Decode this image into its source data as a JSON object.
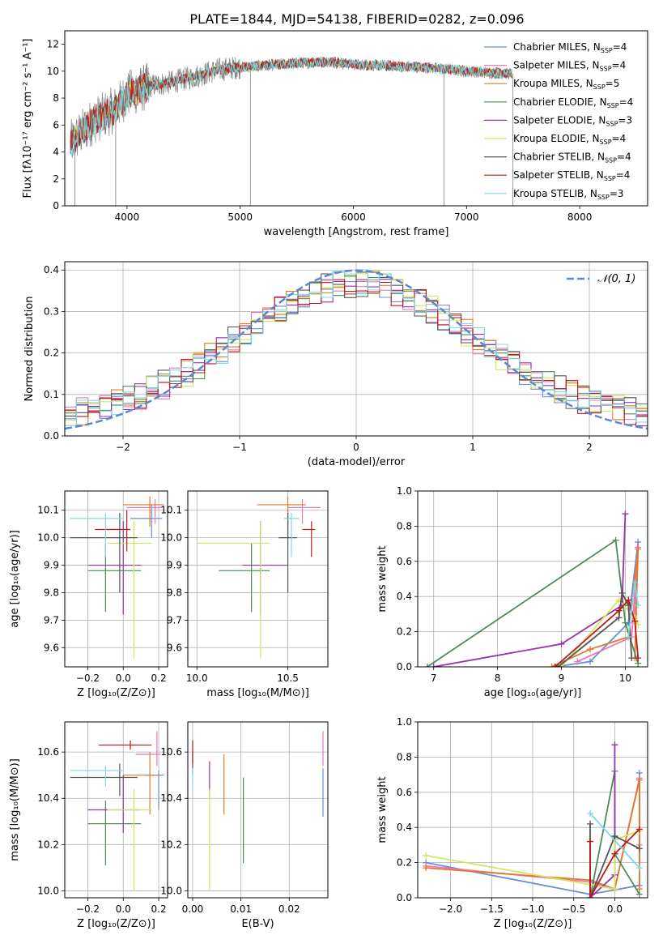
{
  "figure_title": "PLATE=1844, MJD=54138, FIBERID=0282, z=0.096",
  "colors": {
    "chabrier_miles": "#6a8ed8",
    "salpeter_miles": "#e87ab8",
    "kroupa_miles": "#e07a2a",
    "chabrier_elodie": "#4c8a5a",
    "salpeter_elodie": "#9a2fb0",
    "kroupa_elodie": "#d0e860",
    "chabrier_stelib": "#555555",
    "salpeter_stelib": "#c01818",
    "kroupa_stelib": "#80d8e0",
    "data": "#808080",
    "gaussian": "#5b87d6"
  },
  "chart_data": [
    {
      "id": "spectrum",
      "type": "line",
      "xlabel": "wavelength [Angstrom, rest frame]",
      "ylabel": "Flux [fλ10⁻¹⁷ erg cm⁻² s⁻¹ A⁻¹]",
      "xlim": [
        3450,
        8600
      ],
      "ylim": [
        0,
        13
      ],
      "xticks": [
        "4000",
        "5000",
        "6000",
        "7000",
        "8000"
      ],
      "yticks": [
        "0",
        "2",
        "4",
        "6",
        "8",
        "10",
        "12"
      ],
      "grid": false,
      "legend_position": "right",
      "legend": [
        {
          "name": "Chabrier MILES, N_SSP=4",
          "color_key": "chabrier_miles"
        },
        {
          "name": "Salpeter MILES, N_SSP=4",
          "color_key": "salpeter_miles"
        },
        {
          "name": "Kroupa MILES, N_SSP=5",
          "color_key": "kroupa_miles"
        },
        {
          "name": "Chabrier ELODIE, N_SSP=4",
          "color_key": "chabrier_elodie"
        },
        {
          "name": "Salpeter ELODIE, N_SSP=3",
          "color_key": "salpeter_elodie"
        },
        {
          "name": "Kroupa ELODIE, N_SSP=4",
          "color_key": "kroupa_elodie"
        },
        {
          "name": "Chabrier STELIB, N_SSP=4",
          "color_key": "chabrier_stelib"
        },
        {
          "name": "Salpeter STELIB, N_SSP=4",
          "color_key": "salpeter_stelib"
        },
        {
          "name": "Kroupa STELIB, N_SSP=3",
          "color_key": "kroupa_stelib"
        }
      ],
      "continuum": {
        "wavelength": [
          3500,
          3700,
          3900,
          4000,
          4200,
          4400,
          4600,
          4800,
          5000,
          5200,
          5500,
          5800,
          6000,
          6300,
          6600,
          7000,
          7400
        ],
        "flux": [
          4.6,
          6.3,
          7.2,
          8.3,
          8.9,
          9.2,
          9.6,
          10.1,
          10.3,
          10.4,
          10.6,
          10.7,
          10.5,
          10.4,
          10.3,
          10.0,
          9.8
        ]
      },
      "spikes": [
        {
          "wavelength": 3540,
          "flux": 0
        },
        {
          "wavelength": 3900,
          "flux": 0
        },
        {
          "wavelength": 5090,
          "flux": 0
        },
        {
          "wavelength": 6800,
          "flux": 0
        },
        {
          "wavelength": 7410,
          "flux": 0
        }
      ]
    },
    {
      "id": "residuals",
      "type": "histogram",
      "xlabel": "(data-model)/error",
      "ylabel": "Normed distribution",
      "xlim": [
        -2.5,
        2.5
      ],
      "ylim": [
        0,
        0.42
      ],
      "xticks": [
        "−2",
        "−1",
        "0",
        "1",
        "2"
      ],
      "yticks": [
        "0.0",
        "0.1",
        "0.2",
        "0.3",
        "0.4"
      ],
      "grid": true,
      "legend_position": "top-right",
      "legend": [
        {
          "name": "𝒩(0, 1)",
          "color_key": "gaussian"
        }
      ],
      "bin_width": 0.1,
      "gaussian": {
        "mean": 0,
        "sigma": 1
      }
    },
    {
      "id": "age_vs_Z",
      "type": "errorbar",
      "xlabel": "Z [log₁₀(Z/Z⊙)]",
      "ylabel": "age  [log₁₀(age/yr)]",
      "xlim": [
        -0.33,
        0.25
      ],
      "ylim": [
        9.53,
        10.17
      ],
      "xticks": [
        "−0.2",
        "0.0",
        "0.2"
      ],
      "yticks": [
        "9.6",
        "9.7",
        "9.8",
        "9.9",
        "10.0",
        "10.1"
      ],
      "grid": true,
      "points": [
        {
          "color_key": "chabrier_miles",
          "x": 0.16,
          "xerr": [
            0.12,
            0.06
          ],
          "y": 10.07,
          "yerr": [
            0.07,
            0.05
          ]
        },
        {
          "color_key": "salpeter_miles",
          "x": 0.18,
          "xerr": [
            0.16,
            0.04
          ],
          "y": 10.11,
          "yerr": [
            0.06,
            0.03
          ]
        },
        {
          "color_key": "kroupa_miles",
          "x": 0.15,
          "xerr": [
            0.15,
            0.08
          ],
          "y": 10.12,
          "yerr": [
            0.08,
            0.03
          ]
        },
        {
          "color_key": "chabrier_elodie",
          "x": -0.1,
          "xerr": [
            0.1,
            0.2
          ],
          "y": 9.88,
          "yerr": [
            0.15,
            0.1
          ]
        },
        {
          "color_key": "salpeter_elodie",
          "x": 0.0,
          "xerr": [
            0.2,
            0.1
          ],
          "y": 9.9,
          "yerr": [
            0.18,
            0.16
          ]
        },
        {
          "color_key": "kroupa_elodie",
          "x": 0.06,
          "xerr": [
            0.15,
            0.1
          ],
          "y": 9.98,
          "yerr": [
            0.42,
            0.08
          ]
        },
        {
          "color_key": "chabrier_stelib",
          "x": -0.02,
          "xerr": [
            0.28,
            0.1
          ],
          "y": 10.0,
          "yerr": [
            0.2,
            0.09
          ]
        },
        {
          "color_key": "salpeter_stelib",
          "x": 0.02,
          "xerr": [
            0.18,
            0.02
          ],
          "y": 10.03,
          "yerr": [
            0.08,
            0.07
          ]
        },
        {
          "color_key": "kroupa_stelib",
          "x": -0.1,
          "xerr": [
            0.2,
            0.1
          ],
          "y": 10.07,
          "yerr": [
            0.14,
            0.02
          ]
        }
      ]
    },
    {
      "id": "age_vs_mass",
      "type": "errorbar",
      "xlabel": "mass [log₁₀(M/M⊙)]",
      "ylabel": "",
      "xlim": [
        9.95,
        10.72
      ],
      "ylim": [
        9.53,
        10.17
      ],
      "xticks": [
        "10.0",
        "10.5"
      ],
      "yticks": [
        "9.6",
        "9.7",
        "9.8",
        "9.9",
        "10.0",
        "10.1"
      ],
      "grid": true,
      "points": [
        {
          "color_key": "chabrier_miles",
          "x": 10.5,
          "xerr": [
            0.02,
            0.02
          ],
          "y": 10.07,
          "yerr": [
            0.07,
            0.05
          ]
        },
        {
          "color_key": "salpeter_miles",
          "x": 10.58,
          "xerr": [
            0.08,
            0.1
          ],
          "y": 10.11,
          "yerr": [
            0.06,
            0.03
          ]
        },
        {
          "color_key": "kroupa_miles",
          "x": 10.5,
          "xerr": [
            0.17,
            0.1
          ],
          "y": 10.12,
          "yerr": [
            0.08,
            0.03
          ]
        },
        {
          "color_key": "chabrier_elodie",
          "x": 10.3,
          "xerr": [
            0.18,
            0.1
          ],
          "y": 9.88,
          "yerr": [
            0.15,
            0.1
          ]
        },
        {
          "color_key": "salpeter_elodie",
          "x": 10.35,
          "xerr": [
            0.1,
            0.15
          ],
          "y": 9.9,
          "yerr": [
            0.18,
            0.16
          ]
        },
        {
          "color_key": "kroupa_elodie",
          "x": 10.35,
          "xerr": [
            0.35,
            0.05
          ],
          "y": 9.98,
          "yerr": [
            0.42,
            0.08
          ]
        },
        {
          "color_key": "chabrier_stelib",
          "x": 10.5,
          "xerr": [
            0.05,
            0.05
          ],
          "y": 10.0,
          "yerr": [
            0.2,
            0.09
          ]
        },
        {
          "color_key": "salpeter_stelib",
          "x": 10.63,
          "xerr": [
            0.05,
            0.02
          ],
          "y": 10.03,
          "yerr": [
            0.1,
            0.03
          ]
        },
        {
          "color_key": "kroupa_stelib",
          "x": 10.52,
          "xerr": [
            0.04,
            0.04
          ],
          "y": 10.07,
          "yerr": [
            0.14,
            0.02
          ]
        }
      ]
    },
    {
      "id": "weight_vs_age",
      "type": "line",
      "xlabel": "age  [log₁₀(age/yr)]",
      "ylabel": "mass weight",
      "xlim": [
        6.75,
        10.35
      ],
      "ylim": [
        0,
        1.0
      ],
      "xticks": [
        "7",
        "8",
        "9",
        "10"
      ],
      "yticks": [
        "0.0",
        "0.2",
        "0.4",
        "0.6",
        "0.8",
        "1.0"
      ],
      "grid": true,
      "series": [
        {
          "color_key": "chabrier_miles",
          "x": [
            8.9,
            9.45,
            10.05,
            10.2
          ],
          "y": [
            0.0,
            0.03,
            0.25,
            0.71
          ]
        },
        {
          "color_key": "salpeter_miles",
          "x": [
            9.25,
            10.1,
            10.2,
            10.15
          ],
          "y": [
            0.03,
            0.17,
            0.68,
            0.3
          ]
        },
        {
          "color_key": "kroupa_miles",
          "x": [
            8.85,
            9.45,
            10.05,
            10.2,
            10.15
          ],
          "y": [
            0.0,
            0.1,
            0.17,
            0.67,
            0.05
          ]
        },
        {
          "color_key": "chabrier_elodie",
          "x": [
            6.9,
            9.85,
            10.0,
            10.2
          ],
          "y": [
            0.0,
            0.72,
            0.25,
            0.02
          ]
        },
        {
          "color_key": "salpeter_elodie",
          "x": [
            7.0,
            9.0,
            9.95,
            10.0
          ],
          "y": [
            0.0,
            0.13,
            0.35,
            0.87
          ]
        },
        {
          "color_key": "kroupa_elodie",
          "x": [
            9.0,
            9.9,
            10.15,
            10.2
          ],
          "y": [
            0.0,
            0.38,
            0.28,
            0.24
          ]
        },
        {
          "color_key": "chabrier_stelib",
          "x": [
            8.95,
            9.9,
            9.95,
            10.05,
            10.1
          ],
          "y": [
            0.0,
            0.28,
            0.42,
            0.35,
            0.05
          ]
        },
        {
          "color_key": "salpeter_stelib",
          "x": [
            8.9,
            9.9,
            10.05,
            10.15,
            10.2
          ],
          "y": [
            0.0,
            0.32,
            0.38,
            0.26,
            0.05
          ]
        },
        {
          "color_key": "kroupa_stelib",
          "x": [
            10.05,
            10.15,
            10.2
          ],
          "y": [
            0.17,
            0.48,
            0.35
          ]
        }
      ]
    },
    {
      "id": "mass_vs_Z",
      "type": "errorbar",
      "xlabel": "Z [log₁₀(Z/Z⊙)]",
      "ylabel": "mass [log₁₀(M/M⊙)]",
      "xlim": [
        -0.33,
        0.25
      ],
      "ylim": [
        9.97,
        10.73
      ],
      "xticks": [
        "−0.2",
        "0.0",
        "0.2"
      ],
      "yticks": [
        "10.0",
        "10.2",
        "10.4",
        "10.6"
      ],
      "grid": true,
      "points": [
        {
          "color_key": "chabrier_miles",
          "x": 0.2,
          "xerr": [
            0.08,
            0.03
          ],
          "y": 10.5,
          "yerr": [
            0.15,
            0.02
          ]
        },
        {
          "color_key": "salpeter_miles",
          "x": 0.19,
          "xerr": [
            0.12,
            0.02
          ],
          "y": 10.59,
          "yerr": [
            0.05,
            0.1
          ]
        },
        {
          "color_key": "kroupa_miles",
          "x": 0.15,
          "xerr": [
            0.15,
            0.06
          ],
          "y": 10.5,
          "yerr": [
            0.17,
            0.1
          ]
        },
        {
          "color_key": "chabrier_elodie",
          "x": -0.1,
          "xerr": [
            0.1,
            0.2
          ],
          "y": 10.29,
          "yerr": [
            0.18,
            0.1
          ]
        },
        {
          "color_key": "salpeter_elodie",
          "x": 0.0,
          "xerr": [
            0.2,
            0.1
          ],
          "y": 10.35,
          "yerr": [
            0.1,
            0.15
          ]
        },
        {
          "color_key": "kroupa_elodie",
          "x": 0.06,
          "xerr": [
            0.15,
            0.1
          ],
          "y": 10.35,
          "yerr": [
            0.35,
            0.09
          ]
        },
        {
          "color_key": "chabrier_stelib",
          "x": -0.02,
          "xerr": [
            0.28,
            0.1
          ],
          "y": 10.49,
          "yerr": [
            0.08,
            0.06
          ]
        },
        {
          "color_key": "salpeter_stelib",
          "x": 0.04,
          "xerr": [
            0.18,
            0.12
          ],
          "y": 10.63,
          "yerr": [
            0.02,
            0.02
          ]
        },
        {
          "color_key": "kroupa_stelib",
          "x": -0.1,
          "xerr": [
            0.2,
            0.1
          ],
          "y": 10.52,
          "yerr": [
            0.07,
            0.02
          ]
        }
      ]
    },
    {
      "id": "mass_vs_ebv",
      "type": "errorbar",
      "xlabel": "E(B-V)",
      "ylabel": "",
      "xlim": [
        -0.001,
        0.028
      ],
      "ylim": [
        9.97,
        10.73
      ],
      "xticks": [
        "0.00",
        "0.01",
        "0.02"
      ],
      "yticks": [
        "10.0",
        "10.2",
        "10.4",
        "10.6"
      ],
      "grid": true,
      "points": [
        {
          "color_key": "chabrier_miles",
          "x": 0.027,
          "y": 10.5,
          "yerr": [
            0.18,
            0.03
          ]
        },
        {
          "color_key": "salpeter_miles",
          "x": 0.027,
          "y": 10.59,
          "yerr": [
            0.05,
            0.1
          ]
        },
        {
          "color_key": "kroupa_miles",
          "x": 0.0065,
          "y": 10.5,
          "yerr": [
            0.17,
            0.09
          ]
        },
        {
          "color_key": "chabrier_elodie",
          "x": 0.0105,
          "y": 10.3,
          "yerr": [
            0.18,
            0.19
          ]
        },
        {
          "color_key": "salpeter_elodie",
          "x": 0.0035,
          "y": 10.44,
          "yerr": [
            0.04,
            0.12
          ]
        },
        {
          "color_key": "kroupa_elodie",
          "x": 0.0035,
          "y": 10.2,
          "yerr": [
            0.2,
            0.24
          ]
        },
        {
          "color_key": "chabrier_stelib",
          "x": 0.0,
          "y": 10.55,
          "yerr": [
            0.05,
            0.05
          ]
        },
        {
          "color_key": "salpeter_stelib",
          "x": 0.0,
          "y": 10.6,
          "yerr": [
            0.05,
            0.05
          ]
        },
        {
          "color_key": "kroupa_stelib",
          "x": 0.0,
          "y": 10.49,
          "yerr": [
            0.05,
            0.04
          ]
        }
      ]
    },
    {
      "id": "weight_vs_Z",
      "type": "line",
      "xlabel": "Z [log₁₀(Z/Z⊙)]",
      "ylabel": "mass weight",
      "xlim": [
        -2.4,
        0.4
      ],
      "ylim": [
        0,
        1.0
      ],
      "xticks": [
        "−2.0",
        "−1.5",
        "−1.0",
        "−0.5",
        "0.0"
      ],
      "yticks": [
        "0.0",
        "0.2",
        "0.4",
        "0.6",
        "0.8",
        "1.0"
      ],
      "grid": true,
      "series": [
        {
          "color_key": "chabrier_miles",
          "x": [
            -2.3,
            -0.3,
            0.3,
            0.3
          ],
          "y": [
            0.2,
            0.02,
            0.07,
            0.71
          ]
        },
        {
          "color_key": "salpeter_miles",
          "x": [
            -2.3,
            -0.3,
            0.0,
            0.3,
            0.3
          ],
          "y": [
            0.18,
            0.09,
            0.05,
            0.68,
            0.3
          ]
        },
        {
          "color_key": "kroupa_miles",
          "x": [
            -2.3,
            -0.3,
            0.0,
            0.3,
            0.3
          ],
          "y": [
            0.17,
            0.1,
            0.05,
            0.67,
            0.05
          ]
        },
        {
          "color_key": "chabrier_elodie",
          "x": [
            -0.3,
            0.0,
            0.0,
            0.3
          ],
          "y": [
            0.0,
            0.72,
            0.25,
            0.02
          ]
        },
        {
          "color_key": "salpeter_elodie",
          "x": [
            -0.3,
            0.0,
            0.0,
            0.0
          ],
          "y": [
            0.0,
            0.13,
            0.35,
            0.87
          ]
        },
        {
          "color_key": "kroupa_elodie",
          "x": [
            -2.3,
            0.0,
            0.0,
            0.3
          ],
          "y": [
            0.24,
            0.05,
            0.33,
            0.38
          ]
        },
        {
          "color_key": "chabrier_stelib",
          "x": [
            -0.3,
            -0.3,
            0.0,
            0.3
          ],
          "y": [
            0.42,
            0.0,
            0.35,
            0.28
          ]
        },
        {
          "color_key": "salpeter_stelib",
          "x": [
            -0.3,
            -0.3,
            0.0,
            0.3
          ],
          "y": [
            0.32,
            0.0,
            0.25,
            0.39
          ]
        },
        {
          "color_key": "kroupa_stelib",
          "x": [
            -0.3,
            0.3
          ],
          "y": [
            0.48,
            0.17
          ]
        }
      ]
    }
  ]
}
